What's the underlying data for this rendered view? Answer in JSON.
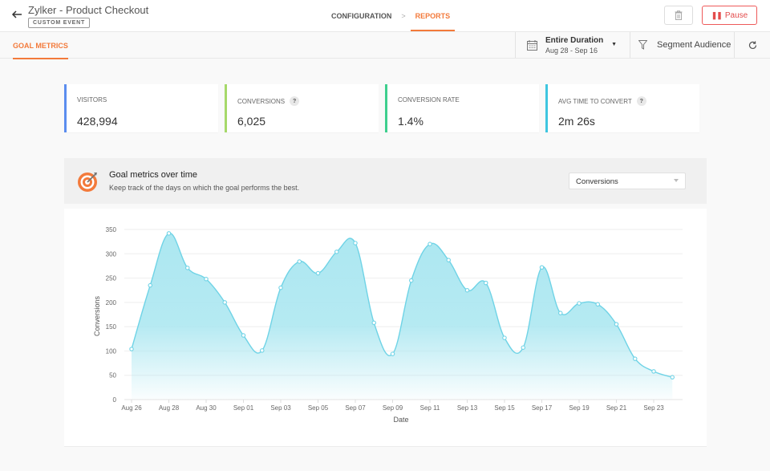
{
  "header": {
    "title": "Zylker - Product Checkout",
    "badge": "CUSTOM EVENT",
    "breadcrumb": [
      {
        "label": "CONFIGURATION",
        "active": false
      },
      {
        "label": "REPORTS",
        "active": true
      }
    ],
    "pause_label": "Pause",
    "icons": {
      "back": "arrow-left-icon",
      "trash": "trash-icon",
      "pause": "pause-icon"
    }
  },
  "subbar": {
    "tab_label": "GOAL METRICS",
    "duration": {
      "title": "Entire Duration",
      "range": "Aug 28 - Sep 16"
    },
    "segment_label": "Segment Audience",
    "icons": {
      "calendar": "calendar-icon",
      "filter": "filter-icon",
      "refresh": "refresh-icon",
      "caret": "caret-down-icon"
    }
  },
  "metrics": [
    {
      "label": "VISITORS",
      "value": "428,994",
      "color": "#5b8def",
      "help": false
    },
    {
      "label": "CONVERSIONS",
      "value": "6,025",
      "color": "#a6d96a",
      "help": true
    },
    {
      "label": "CONVERSION RATE",
      "value": "1.4%",
      "color": "#3ecf8e",
      "help": false
    },
    {
      "label": "AVG TIME TO CONVERT",
      "value": "2m 26s",
      "color": "#3ec6e0",
      "help": true
    }
  ],
  "panel": {
    "title": "Goal metrics over time",
    "subtitle": "Keep track of the days on which the goal performs the best.",
    "select_value": "Conversions",
    "help_glyph": "?"
  },
  "colors": {
    "accent": "#f37a3b",
    "pause": "#e34c4c",
    "series_line": "#6fd3e6",
    "series_fill": "#a8e6f0"
  },
  "chart_data": {
    "type": "area",
    "title": "Goal metrics over time",
    "xlabel": "Date",
    "ylabel": "Conversions",
    "ylim": [
      0,
      350
    ],
    "yticks": [
      0,
      50,
      100,
      150,
      200,
      250,
      300,
      350
    ],
    "grid": true,
    "legend": "none",
    "x": [
      "Aug 26",
      "Aug 27",
      "Aug 28",
      "Aug 29",
      "Aug 30",
      "Aug 31",
      "Sep 01",
      "Sep 02",
      "Sep 03",
      "Sep 04",
      "Sep 05",
      "Sep 06",
      "Sep 07",
      "Sep 08",
      "Sep 09",
      "Sep 10",
      "Sep 11",
      "Sep 12",
      "Sep 13",
      "Sep 14",
      "Sep 15",
      "Sep 16",
      "Sep 17",
      "Sep 18",
      "Sep 19",
      "Sep 20",
      "Sep 21",
      "Sep 22",
      "Sep 23",
      "Sep 24"
    ],
    "xtick_labels": [
      "Aug 26",
      "Aug 28",
      "Aug 30",
      "Sep 01",
      "Sep 03",
      "Sep 05",
      "Sep 07",
      "Sep 09",
      "Sep 11",
      "Sep 13",
      "Sep 15",
      "Sep 17",
      "Sep 19",
      "Sep 21",
      "Sep 23"
    ],
    "series": [
      {
        "name": "Conversions",
        "values": [
          104,
          235,
          342,
          271,
          248,
          200,
          132,
          101,
          230,
          284,
          260,
          304,
          322,
          158,
          94,
          245,
          320,
          287,
          225,
          240,
          127,
          107,
          272,
          178,
          198,
          196,
          155,
          84,
          58,
          46
        ]
      }
    ]
  }
}
